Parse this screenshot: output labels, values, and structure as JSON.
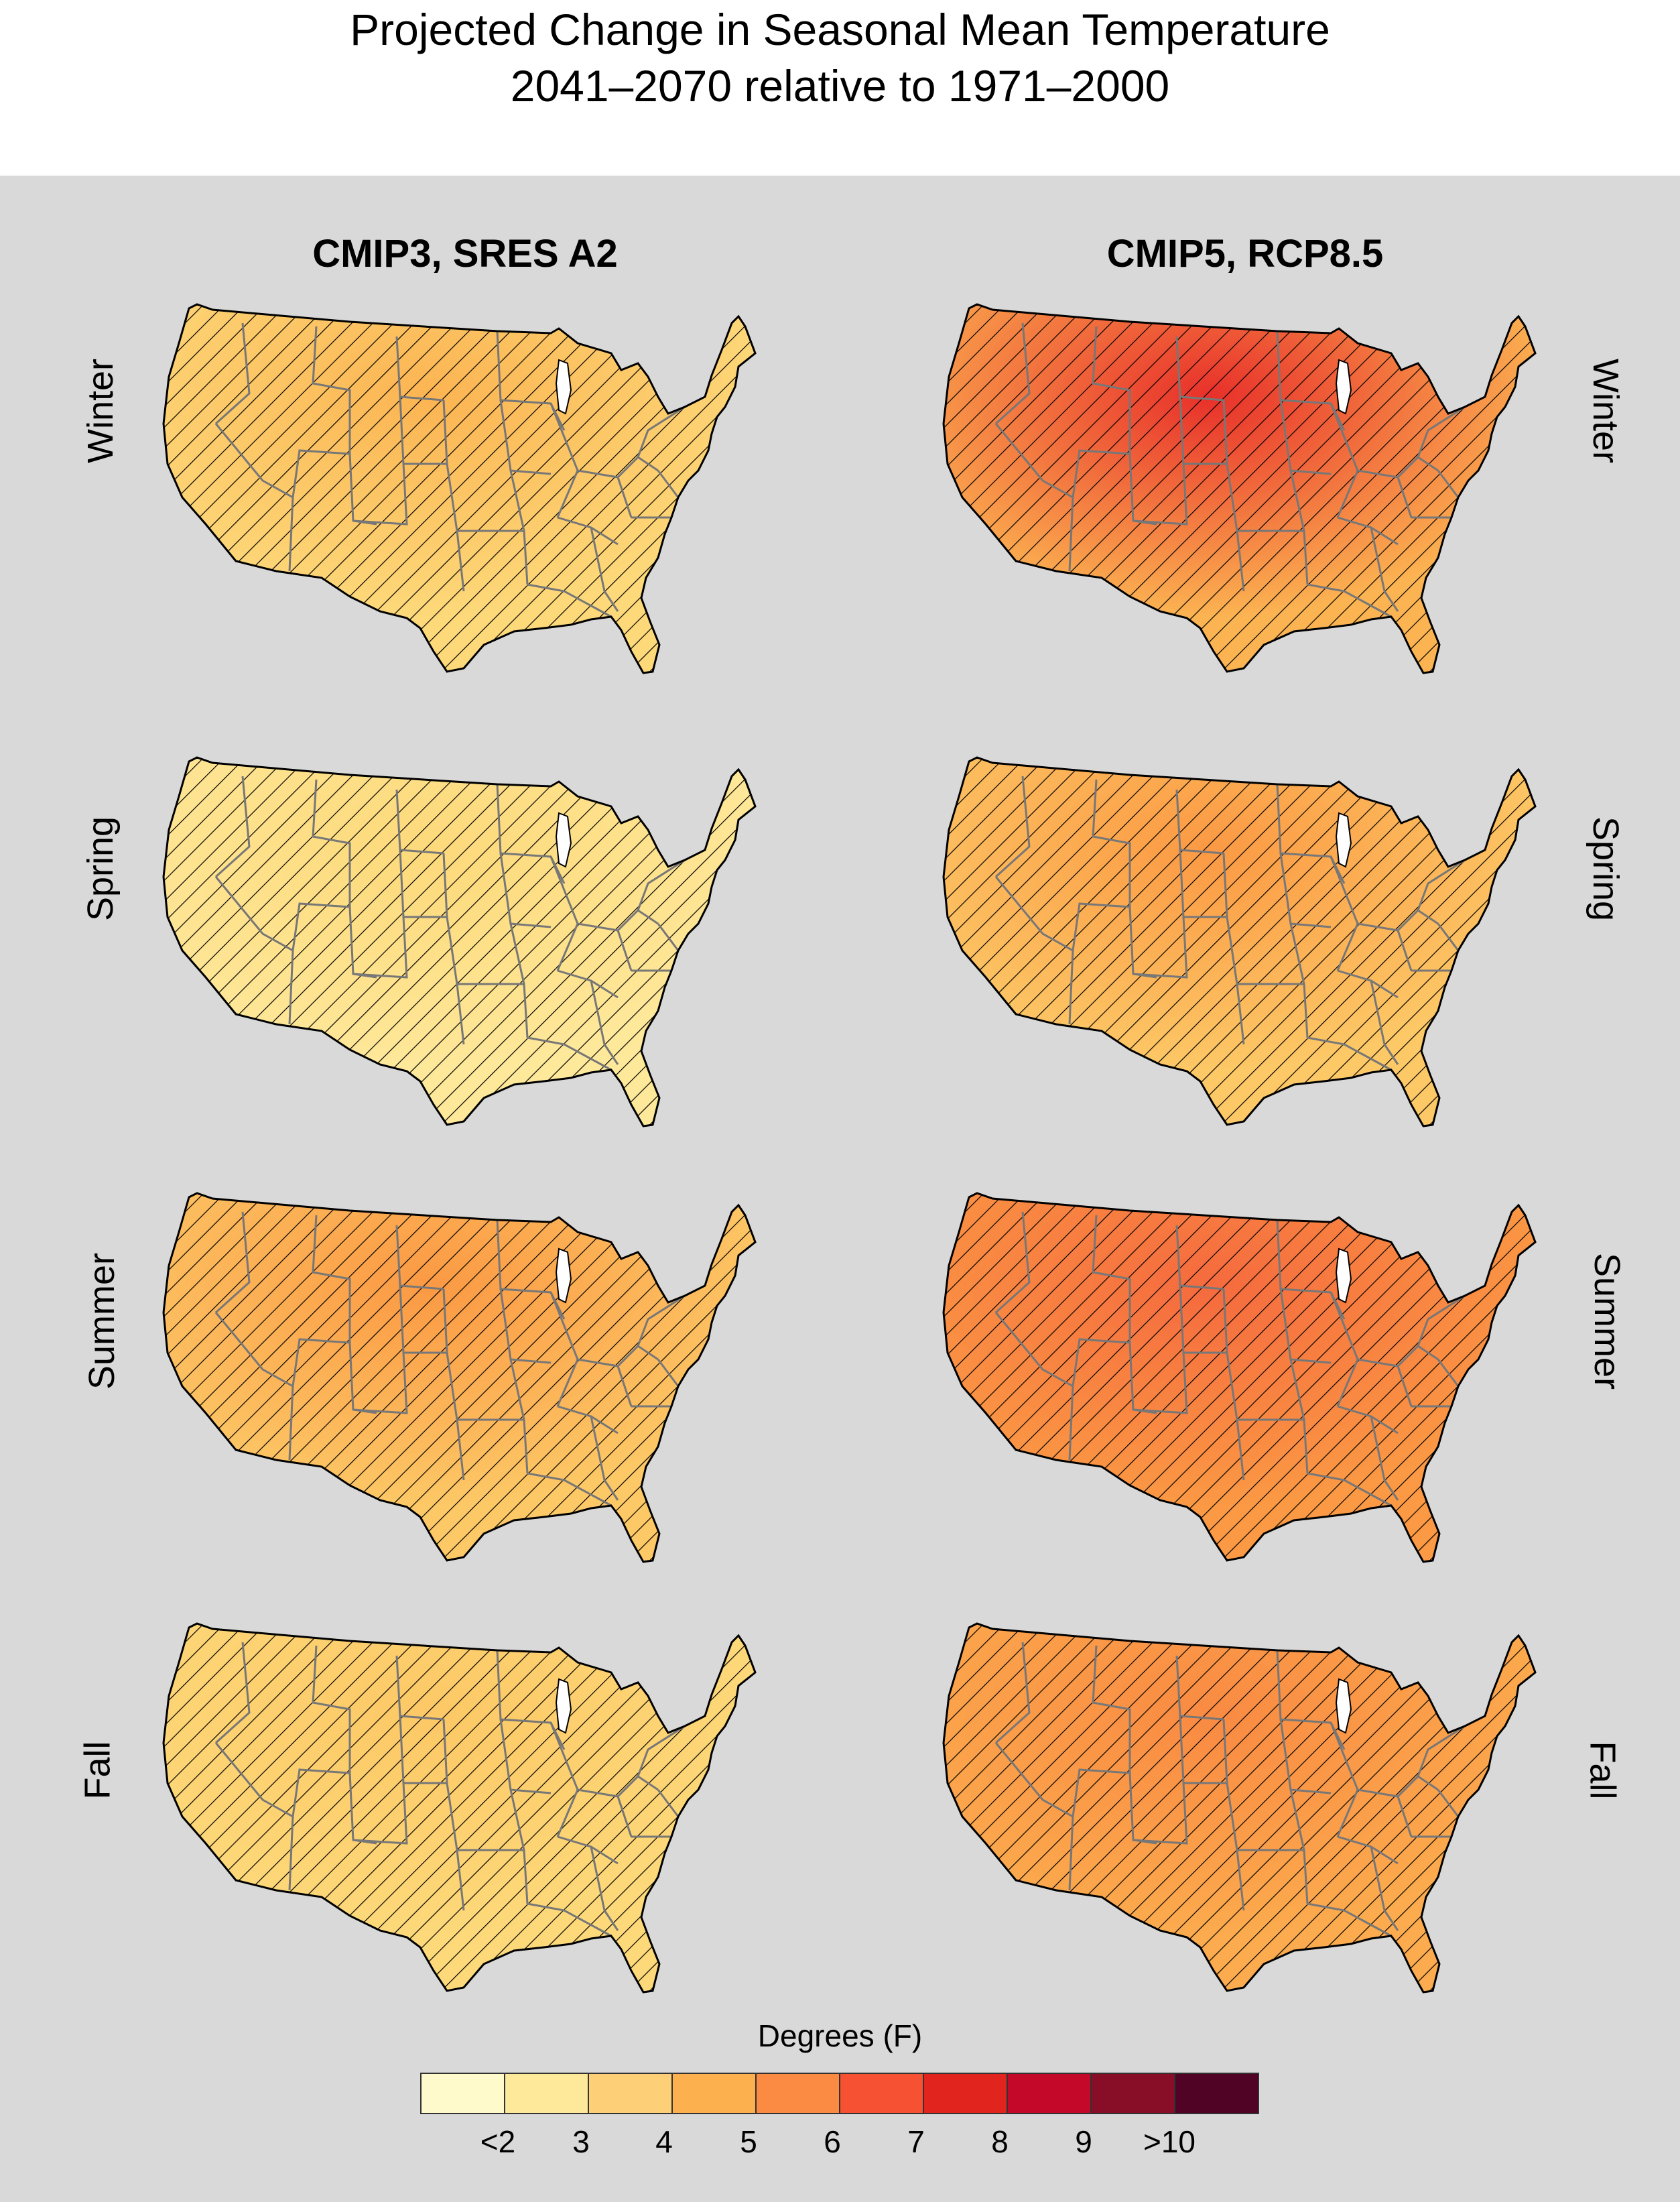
{
  "title": {
    "line1": "Projected Change in Seasonal Mean Temperature",
    "line2": "2041–2070 relative to 1971–2000"
  },
  "columns": [
    {
      "label": "CMIP3, SRES A2"
    },
    {
      "label": "CMIP5, RCP8.5"
    }
  ],
  "rows": [
    {
      "label": "Winter"
    },
    {
      "label": "Spring"
    },
    {
      "label": "Summer"
    },
    {
      "label": "Fall"
    }
  ],
  "maps": [
    {
      "column": "CMIP3, SRES A2",
      "season": "Winter",
      "base_color": "#fdd97a",
      "hot_color": "#fcb452",
      "hot_level": "4"
    },
    {
      "column": "CMIP5, RCP8.5",
      "season": "Winter",
      "base_color": "#fcb452",
      "hot_color": "#e8302a",
      "hot_level": "7"
    },
    {
      "column": "CMIP3, SRES A2",
      "season": "Spring",
      "base_color": "#fee89a",
      "hot_color": "#fdd97a",
      "hot_level": "3"
    },
    {
      "column": "CMIP5, RCP8.5",
      "season": "Spring",
      "base_color": "#fdc866",
      "hot_color": "#fb9944",
      "hot_level": "5"
    },
    {
      "column": "CMIP3, SRES A2",
      "season": "Summer",
      "base_color": "#fdc866",
      "hot_color": "#fb9944",
      "hot_level": "5"
    },
    {
      "column": "CMIP5, RCP8.5",
      "season": "Summer",
      "base_color": "#fb9944",
      "hot_color": "#f56a3e",
      "hot_level": "6"
    },
    {
      "column": "CMIP3, SRES A2",
      "season": "Fall",
      "base_color": "#fdd97a",
      "hot_color": "#fdc866",
      "hot_level": "4"
    },
    {
      "column": "CMIP5, RCP8.5",
      "season": "Fall",
      "base_color": "#fcab4e",
      "hot_color": "#f98a42",
      "hot_level": "5"
    }
  ],
  "legend": {
    "title": "Degrees (F)",
    "bins": [
      {
        "label": "<2",
        "color": "#fffacb"
      },
      {
        "label": "3",
        "color": "#fee89a"
      },
      {
        "label": "4",
        "color": "#fdd077"
      },
      {
        "label": "5",
        "color": "#fcb04e"
      },
      {
        "label": "6",
        "color": "#fb8b42"
      },
      {
        "label": "7",
        "color": "#f75133"
      },
      {
        "label": "8",
        "color": "#e1241e"
      },
      {
        "label": "9",
        "color": "#c30829"
      },
      {
        "label": ">10",
        "color": "#880d26"
      },
      {
        "label": "",
        "color": "#510325"
      }
    ]
  }
}
